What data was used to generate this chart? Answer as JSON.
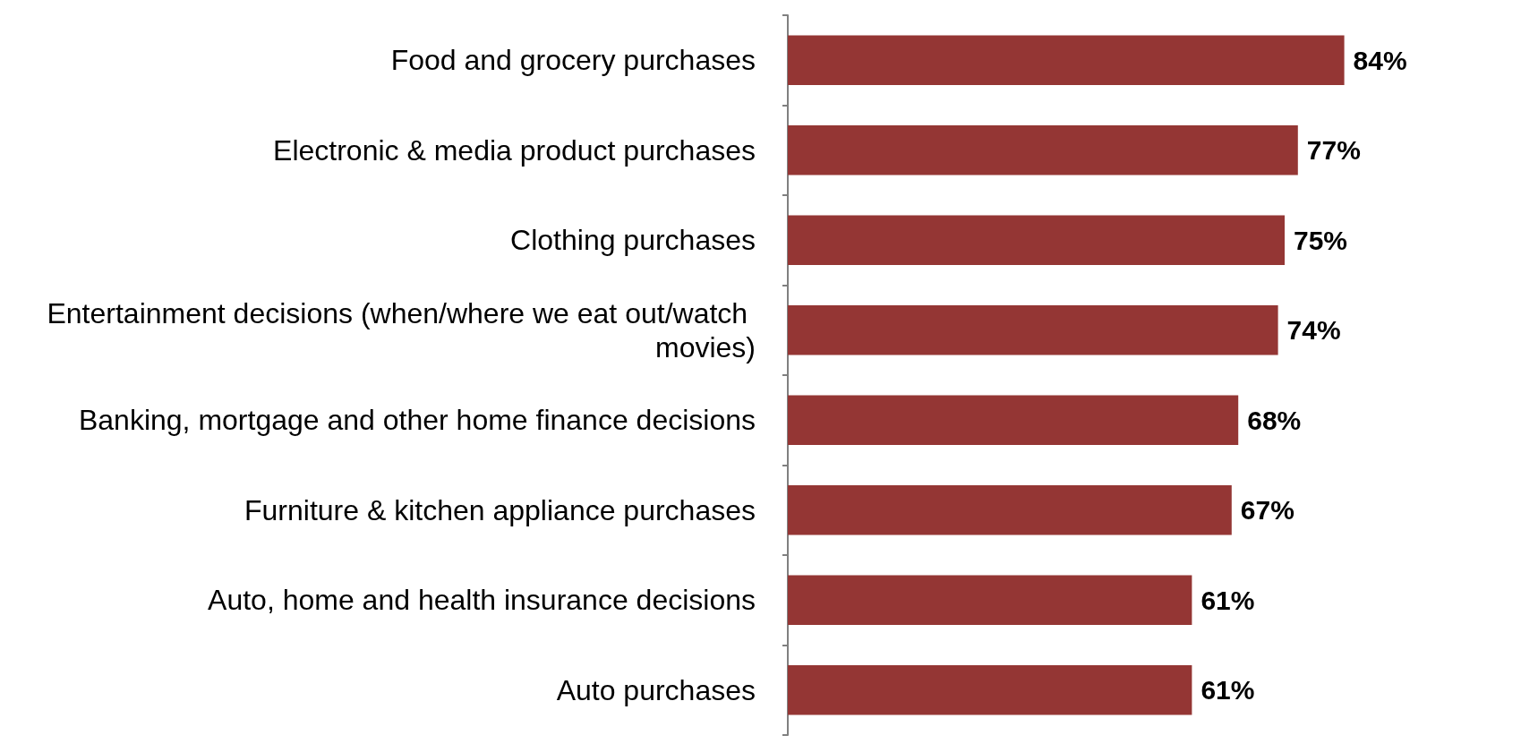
{
  "chart_data": {
    "type": "bar",
    "orientation": "horizontal",
    "categories": [
      "Food and grocery purchases",
      "Electronic & media product purchases",
      "Clothing purchases",
      "Entertainment decisions (when/where we eat out/watch movies)",
      "Banking, mortgage and other home finance decisions",
      "Furniture & kitchen appliance purchases",
      "Auto, home and health insurance decisions",
      "Auto purchases"
    ],
    "values": [
      84,
      77,
      75,
      74,
      68,
      67,
      61,
      61
    ],
    "value_labels": [
      "84%",
      "77%",
      "75%",
      "74%",
      "68%",
      "67%",
      "61%",
      "61%"
    ],
    "color": "#943634"
  }
}
